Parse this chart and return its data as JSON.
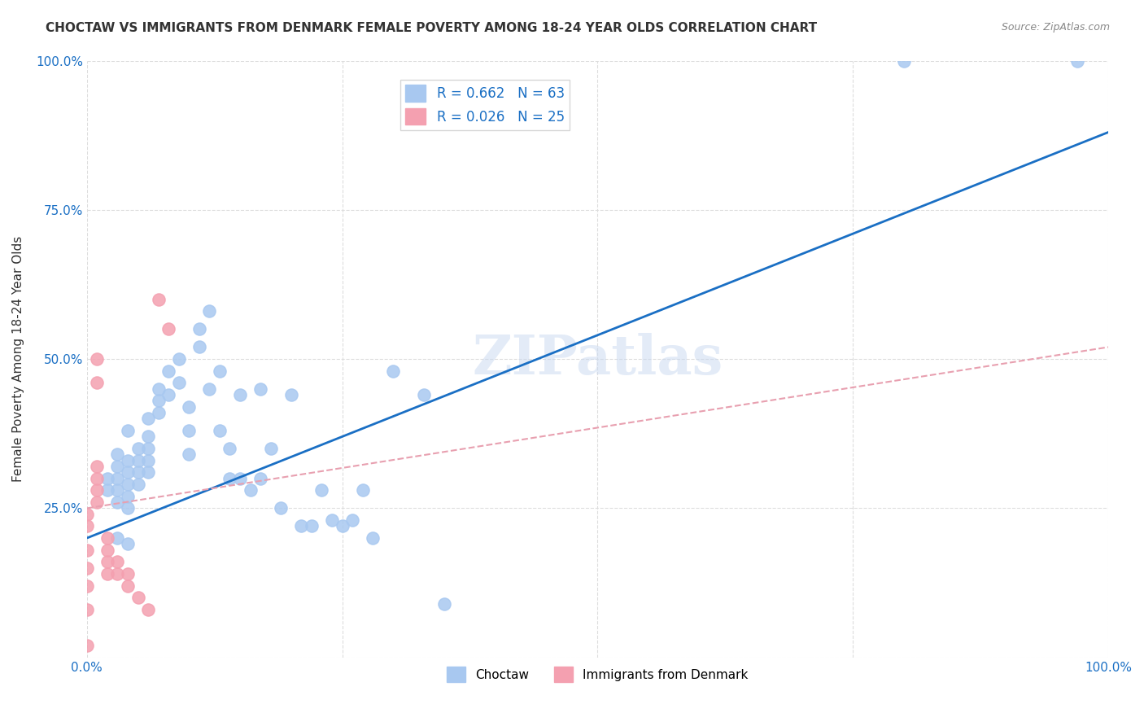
{
  "title": "CHOCTAW VS IMMIGRANTS FROM DENMARK FEMALE POVERTY AMONG 18-24 YEAR OLDS CORRELATION CHART",
  "source": "Source: ZipAtlas.com",
  "ylabel": "Female Poverty Among 18-24 Year Olds",
  "xlabel": "",
  "xlim": [
    0,
    1.0
  ],
  "ylim": [
    0,
    1.0
  ],
  "xticks": [
    0.0,
    0.25,
    0.5,
    0.75,
    1.0
  ],
  "yticks": [
    0.0,
    0.25,
    0.5,
    0.75,
    1.0
  ],
  "xtick_labels": [
    "0.0%",
    "",
    "",
    "",
    "100.0%"
  ],
  "ytick_labels": [
    "",
    "25.0%",
    "50.0%",
    "75.0%",
    "100.0%"
  ],
  "background_color": "#ffffff",
  "grid_color": "#dddddd",
  "choctaw_color": "#a8c8f0",
  "denmark_color": "#f4a0b0",
  "choctaw_R": 0.662,
  "choctaw_N": 63,
  "denmark_R": 0.026,
  "denmark_N": 25,
  "choctaw_line_color": "#1a6fc4",
  "denmark_line_color": "#e8a0b0",
  "legend_R_color": "#1a6fc4",
  "watermark": "ZIPatlas",
  "choctaw_points": [
    [
      0.02,
      0.28
    ],
    [
      0.02,
      0.3
    ],
    [
      0.03,
      0.32
    ],
    [
      0.03,
      0.34
    ],
    [
      0.03,
      0.3
    ],
    [
      0.03,
      0.28
    ],
    [
      0.03,
      0.26
    ],
    [
      0.04,
      0.33
    ],
    [
      0.04,
      0.31
    ],
    [
      0.04,
      0.29
    ],
    [
      0.04,
      0.27
    ],
    [
      0.04,
      0.25
    ],
    [
      0.04,
      0.38
    ],
    [
      0.05,
      0.35
    ],
    [
      0.05,
      0.33
    ],
    [
      0.05,
      0.31
    ],
    [
      0.05,
      0.29
    ],
    [
      0.06,
      0.4
    ],
    [
      0.06,
      0.37
    ],
    [
      0.06,
      0.35
    ],
    [
      0.06,
      0.33
    ],
    [
      0.06,
      0.31
    ],
    [
      0.07,
      0.45
    ],
    [
      0.07,
      0.43
    ],
    [
      0.07,
      0.41
    ],
    [
      0.08,
      0.48
    ],
    [
      0.08,
      0.44
    ],
    [
      0.09,
      0.5
    ],
    [
      0.09,
      0.46
    ],
    [
      0.1,
      0.42
    ],
    [
      0.1,
      0.38
    ],
    [
      0.1,
      0.34
    ],
    [
      0.11,
      0.55
    ],
    [
      0.11,
      0.52
    ],
    [
      0.12,
      0.58
    ],
    [
      0.12,
      0.45
    ],
    [
      0.13,
      0.48
    ],
    [
      0.13,
      0.38
    ],
    [
      0.14,
      0.35
    ],
    [
      0.14,
      0.3
    ],
    [
      0.15,
      0.44
    ],
    [
      0.15,
      0.3
    ],
    [
      0.16,
      0.28
    ],
    [
      0.17,
      0.45
    ],
    [
      0.17,
      0.3
    ],
    [
      0.18,
      0.35
    ],
    [
      0.19,
      0.25
    ],
    [
      0.2,
      0.44
    ],
    [
      0.21,
      0.22
    ],
    [
      0.22,
      0.22
    ],
    [
      0.23,
      0.28
    ],
    [
      0.24,
      0.23
    ],
    [
      0.25,
      0.22
    ],
    [
      0.26,
      0.23
    ],
    [
      0.27,
      0.28
    ],
    [
      0.28,
      0.2
    ],
    [
      0.3,
      0.48
    ],
    [
      0.33,
      0.44
    ],
    [
      0.35,
      0.09
    ],
    [
      0.8,
      1.0
    ],
    [
      0.97,
      1.0
    ],
    [
      0.03,
      0.2
    ],
    [
      0.04,
      0.19
    ]
  ],
  "denmark_points": [
    [
      0.0,
      0.02
    ],
    [
      0.0,
      0.08
    ],
    [
      0.0,
      0.12
    ],
    [
      0.0,
      0.15
    ],
    [
      0.0,
      0.18
    ],
    [
      0.0,
      0.22
    ],
    [
      0.0,
      0.24
    ],
    [
      0.01,
      0.26
    ],
    [
      0.01,
      0.28
    ],
    [
      0.01,
      0.3
    ],
    [
      0.01,
      0.32
    ],
    [
      0.01,
      0.46
    ],
    [
      0.01,
      0.5
    ],
    [
      0.02,
      0.14
    ],
    [
      0.02,
      0.16
    ],
    [
      0.02,
      0.18
    ],
    [
      0.02,
      0.2
    ],
    [
      0.03,
      0.14
    ],
    [
      0.03,
      0.16
    ],
    [
      0.04,
      0.12
    ],
    [
      0.04,
      0.14
    ],
    [
      0.05,
      0.1
    ],
    [
      0.06,
      0.08
    ],
    [
      0.07,
      0.6
    ],
    [
      0.08,
      0.55
    ]
  ],
  "choctaw_trendline": [
    [
      0.0,
      0.2
    ],
    [
      1.0,
      0.88
    ]
  ],
  "denmark_trendline": [
    [
      0.0,
      0.25
    ],
    [
      1.0,
      0.52
    ]
  ]
}
